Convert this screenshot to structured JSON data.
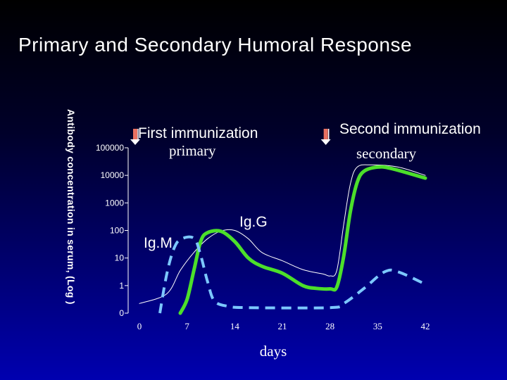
{
  "chart_data": {
    "type": "line",
    "title": "Primary and Secondary Humoral Response",
    "xlabel": "days",
    "ylabel": "Antibody concentration in serum, (Log )",
    "x_ticks": [
      0,
      7,
      14,
      21,
      28,
      35,
      42
    ],
    "xlim": [
      0,
      42
    ],
    "y_ticks": [
      "0",
      "1",
      "10",
      "100",
      "1000",
      "10000",
      "100000"
    ],
    "ylim": [
      0,
      6
    ],
    "y_scale": "log",
    "annotations": [
      {
        "text": "First immunization",
        "style": "sans",
        "x": 0,
        "y": 5.6
      },
      {
        "text": "primary",
        "style": "serif",
        "x": 4,
        "y": 5.0
      },
      {
        "text": "Second immunization",
        "style": "sans",
        "x": 28,
        "y": 5.7
      },
      {
        "text": "secondary",
        "style": "serif",
        "x": 33,
        "y": 4.8
      },
      {
        "text": "Ig.G",
        "style": "sans",
        "x": 16,
        "y": 2.5
      },
      {
        "text": "Ig.M",
        "style": "sans",
        "x": 1,
        "y": 2.3
      }
    ],
    "arrows_at_x": [
      0,
      28
    ],
    "series": [
      {
        "name": "",
        "color": "#ffffff",
        "style": "thin",
        "points": [
          [
            0,
            0.35
          ],
          [
            4,
            0.7
          ],
          [
            6,
            1.55
          ],
          [
            8,
            2.2
          ],
          [
            10,
            2.7
          ],
          [
            12,
            2.98
          ],
          [
            14,
            3.0
          ],
          [
            16,
            2.7
          ],
          [
            18,
            2.2
          ],
          [
            21,
            1.9
          ],
          [
            24,
            1.58
          ],
          [
            27,
            1.42
          ],
          [
            28,
            1.35
          ],
          [
            29,
            1.55
          ],
          [
            30,
            3.2
          ],
          [
            31,
            4.7
          ],
          [
            32,
            5.3
          ],
          [
            34,
            5.38
          ],
          [
            38,
            5.3
          ],
          [
            42,
            5.0
          ]
        ]
      },
      {
        "name": "Ig.G",
        "color": "#4ce02a",
        "style": "thick",
        "points": [
          [
            6,
            0
          ],
          [
            7,
            0.5
          ],
          [
            8,
            1.55
          ],
          [
            9,
            2.6
          ],
          [
            10,
            2.92
          ],
          [
            12,
            2.97
          ],
          [
            14,
            2.6
          ],
          [
            16,
            2.0
          ],
          [
            18,
            1.7
          ],
          [
            21,
            1.45
          ],
          [
            24,
            1.0
          ],
          [
            26,
            0.9
          ],
          [
            28,
            0.88
          ],
          [
            29,
            0.95
          ],
          [
            30,
            2.05
          ],
          [
            31,
            3.7
          ],
          [
            32,
            4.75
          ],
          [
            33,
            5.15
          ],
          [
            35,
            5.3
          ],
          [
            37,
            5.25
          ],
          [
            42,
            4.9
          ]
        ]
      },
      {
        "name": "Ig.M",
        "color": "#7cc8ff",
        "style": "dashed",
        "points": [
          [
            3,
            0
          ],
          [
            4,
            1.4
          ],
          [
            5,
            2.3
          ],
          [
            6,
            2.67
          ],
          [
            8,
            2.72
          ],
          [
            9,
            2.1
          ],
          [
            10,
            1.15
          ],
          [
            11,
            0.45
          ],
          [
            13,
            0.25
          ],
          [
            16,
            0.2
          ],
          [
            28,
            0.2
          ],
          [
            30,
            0.35
          ],
          [
            33,
            0.9
          ],
          [
            36,
            1.5
          ],
          [
            38,
            1.5
          ],
          [
            42,
            1.05
          ]
        ]
      }
    ]
  }
}
